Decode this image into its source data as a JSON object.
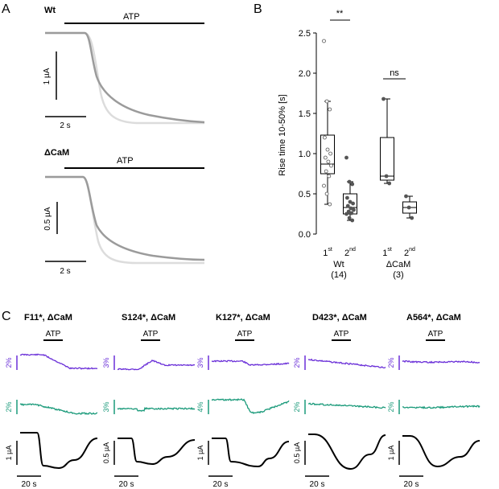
{
  "colors": {
    "black": "#000000",
    "purple": "#6a2fd8",
    "green": "#1a9a7a",
    "trace_dark": "#9b9b9b",
    "trace_light": "#dcdcdc",
    "point": "#555555"
  },
  "panelA": {
    "label": "A",
    "wt": {
      "name": "Wt",
      "atp": "ATP",
      "scale_y": "1 µA",
      "scale_x": "2 s"
    },
    "dcam": {
      "name": "ΔCaM",
      "atp": "ATP",
      "scale_y": "0.5 µA",
      "scale_x": "2 s"
    }
  },
  "panelB": {
    "label": "B",
    "sig_wt": "**",
    "sig_dcam": "ns",
    "first_base": "1",
    "first_sup": "st",
    "second_base": "2",
    "second_sup": "nd",
    "group1_name": "Wt",
    "group1_n": "(14)",
    "group2_name": "ΔCaM",
    "group2_n": "(3)"
  },
  "panelC": {
    "label": "C",
    "atp": "ATP",
    "scale_x": "20 s",
    "items": [
      {
        "title": "F11*, ΔCaM",
        "purple_scale": "2%",
        "green_scale": "2%",
        "current_scale": "1 µA"
      },
      {
        "title": "S124*, ΔCaM",
        "purple_scale": "3%",
        "green_scale": "3%",
        "current_scale": "0.5 µA"
      },
      {
        "title": "K127*, ΔCaM",
        "purple_scale": "3%",
        "green_scale": "4%",
        "current_scale": "1 µA"
      },
      {
        "title": "D423*, ΔCaM",
        "purple_scale": "2%",
        "green_scale": "2%",
        "current_scale": "0.5 µA"
      },
      {
        "title": "A564*, ΔCaM",
        "purple_scale": "2%",
        "green_scale": "2%",
        "current_scale": "1 µA"
      }
    ]
  },
  "chart_data": {
    "type": "box",
    "ylabel": "Rise time 10-50% [s]",
    "ylim": [
      0,
      2.5
    ],
    "yticks": [
      0.0,
      0.5,
      1.0,
      1.5,
      2.0,
      2.5
    ],
    "ytick_labels": [
      "0.0",
      "0.5",
      "1.0",
      "1.5",
      "2.0",
      "2.5"
    ],
    "groups": [
      {
        "name": "Wt",
        "n": 14,
        "boxes": [
          {
            "label": "1st",
            "whisker_low": 0.37,
            "q1": 0.75,
            "median": 0.87,
            "q3": 1.23,
            "whisker_high": 1.65,
            "points": [
              2.4,
              1.65,
              1.55,
              1.2,
              1.05,
              1.0,
              0.95,
              0.9,
              0.85,
              0.78,
              0.72,
              0.6,
              0.5,
              0.37
            ]
          },
          {
            "label": "2nd",
            "whisker_low": 0.17,
            "q1": 0.25,
            "median": 0.33,
            "q3": 0.5,
            "whisker_high": 0.65,
            "points": [
              0.95,
              0.65,
              0.62,
              0.45,
              0.4,
              0.38,
              0.35,
              0.32,
              0.3,
              0.28,
              0.26,
              0.25,
              0.2,
              0.17
            ]
          }
        ]
      },
      {
        "name": "ΔCaM",
        "n": 3,
        "boxes": [
          {
            "label": "1st",
            "whisker_low": 0.63,
            "q1": 0.67,
            "median": 0.72,
            "q3": 1.2,
            "whisker_high": 1.68,
            "points": [
              1.68,
              0.72,
              0.63
            ]
          },
          {
            "label": "2nd",
            "whisker_low": 0.2,
            "q1": 0.26,
            "median": 0.33,
            "q3": 0.4,
            "whisker_high": 0.47,
            "points": [
              0.47,
              0.33,
              0.2
            ]
          }
        ]
      }
    ]
  }
}
